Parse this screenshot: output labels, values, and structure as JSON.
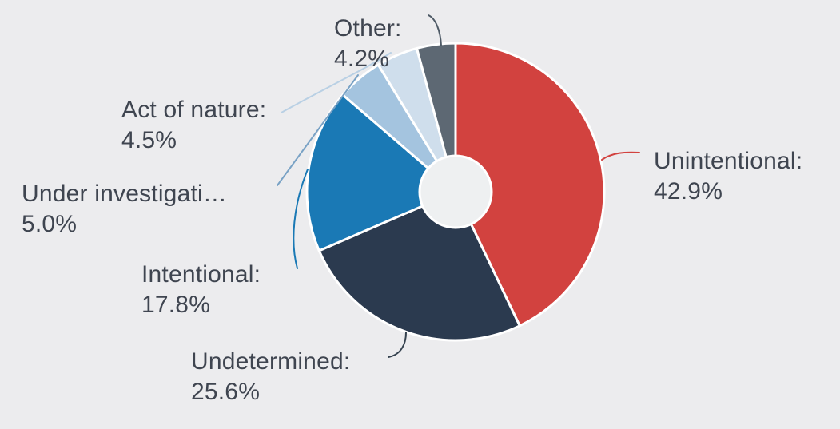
{
  "background_color": "#ececee",
  "text_color": "#3f4550",
  "chart_data": {
    "type": "pie",
    "variant": "donut",
    "start_angle": "top",
    "direction": "clockwise",
    "hole_color": "#eef0f1",
    "slice_border_color": "#ffffff",
    "legend_position": "none",
    "title": "",
    "slices": [
      {
        "label": "Unintentional",
        "display_label": "Unintentional:",
        "value": 42.9,
        "value_text": "42.9%",
        "color": "#d2423f",
        "leader_color": "#d2423f"
      },
      {
        "label": "Undetermined",
        "display_label": "Undetermined:",
        "value": 25.6,
        "value_text": "25.6%",
        "color": "#2b3a4f",
        "leader_color": "#35424f"
      },
      {
        "label": "Intentional",
        "display_label": "Intentional:",
        "value": 17.8,
        "value_text": "17.8%",
        "color": "#1a79b5",
        "leader_color": "#1a79b5"
      },
      {
        "label": "Under investigation",
        "display_label": "Under investigati…",
        "value": 5.0,
        "value_text": "5.0%",
        "color": "#a4c4df",
        "leader_color": "#79a2c5"
      },
      {
        "label": "Act of nature",
        "display_label": "Act of nature:",
        "value": 4.5,
        "value_text": "4.5%",
        "color": "#cfdeec",
        "leader_color": "#b9d0e4"
      },
      {
        "label": "Other",
        "display_label": "Other:",
        "value": 4.2,
        "value_text": "4.2%",
        "color": "#5d6873",
        "leader_color": "#4e5a66"
      }
    ]
  }
}
